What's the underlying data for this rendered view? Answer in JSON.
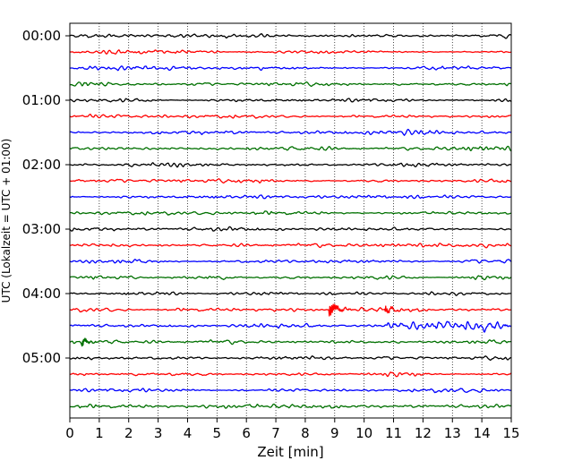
{
  "chart_data": {
    "type": "line",
    "chart_style": "seismic helicorder (multi-trace)",
    "xlabel": "Zeit  [min]",
    "ylabel": "UTC (Lokalzeit = UTC + 01:00)",
    "xlim": [
      0,
      15
    ],
    "x_ticks": [
      "0",
      "1",
      "2",
      "3",
      "4",
      "5",
      "6",
      "7",
      "8",
      "9",
      "10",
      "11",
      "12",
      "13",
      "14",
      "15"
    ],
    "y_ticks": [
      "00:00",
      "01:00",
      "02:00",
      "03:00",
      "04:00",
      "05:00"
    ],
    "vertical_grid": "dotted, every minute",
    "trace_count": 24,
    "trace_interval_minutes": 15,
    "color_cycle": [
      "#000000",
      "#ff0000",
      "#0000ff",
      "#007000"
    ],
    "events": [
      {
        "trace_index": 17,
        "start_time": "04:15",
        "minute": 8.8,
        "description": "large spike"
      },
      {
        "trace_index": 17,
        "start_time": "04:15",
        "minute": 10.7,
        "description": "smaller spike"
      },
      {
        "trace_index": 18,
        "start_time": "04:30",
        "minute": 10.8,
        "description": "increased activity until end of trace"
      },
      {
        "trace_index": 19,
        "start_time": "04:45",
        "minute": 0.4,
        "description": "spike"
      }
    ]
  }
}
